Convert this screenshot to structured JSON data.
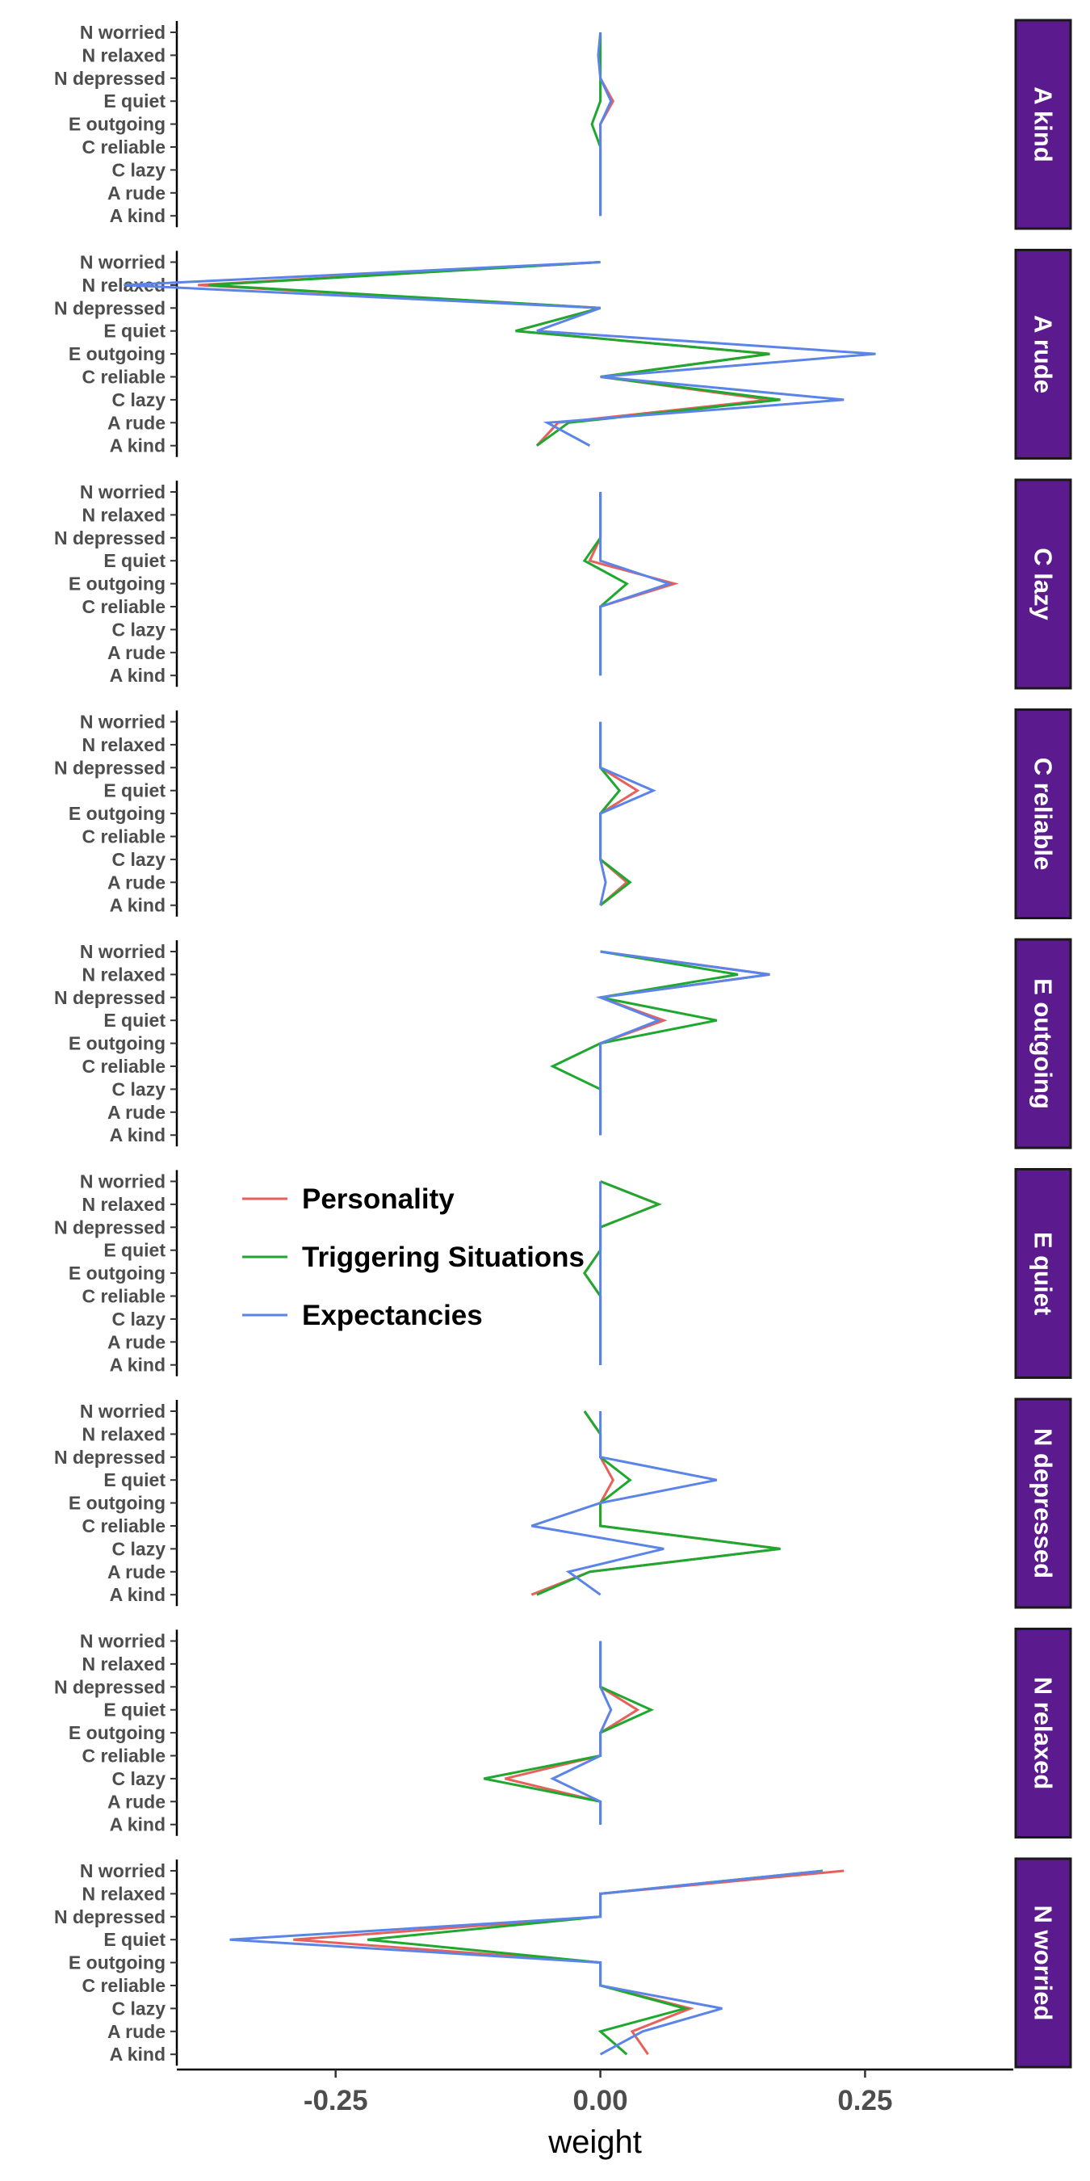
{
  "chart_data": {
    "type": "line",
    "xlabel": "weight",
    "ylabel": "",
    "xlim": [
      -0.4,
      0.39
    ],
    "x_ticks": [
      -0.25,
      0.0,
      0.25
    ],
    "x_tick_labels": [
      "-0.25",
      "0.00",
      "0.25"
    ],
    "y_categories": [
      "N worried",
      "N relaxed",
      "N depressed",
      "E quiet",
      "E outgoing",
      "C reliable",
      "C lazy",
      "A rude",
      "A kind"
    ],
    "facet_strip_color": "#5c1a8f",
    "legend": {
      "placement": "inside-left",
      "entries": [
        {
          "label": "Personality",
          "color": "#e8605a"
        },
        {
          "label": "Triggering Situations",
          "color": "#1fa82f"
        },
        {
          "label": "Expectancies",
          "color": "#5b84e8"
        }
      ]
    },
    "panels": [
      {
        "facet": "A kind",
        "series": [
          {
            "name": "Personality",
            "values": [
              0,
              0,
              0,
              0.012,
              0,
              0,
              0,
              0,
              0
            ]
          },
          {
            "name": "Triggering Situations",
            "values": [
              0,
              0,
              0,
              0,
              -0.008,
              0,
              0,
              0,
              0
            ]
          },
          {
            "name": "Expectancies",
            "values": [
              0,
              -0.002,
              0,
              0.01,
              0,
              0,
              0,
              0,
              0
            ]
          }
        ]
      },
      {
        "facet": "A rude",
        "series": [
          {
            "name": "Personality",
            "values": [
              0,
              -0.38,
              0,
              -0.08,
              0.16,
              0,
              0.16,
              -0.04,
              -0.06
            ]
          },
          {
            "name": "Triggering Situations",
            "values": [
              0,
              -0.37,
              0,
              -0.08,
              0.16,
              0,
              0.17,
              -0.03,
              -0.06
            ]
          },
          {
            "name": "Expectancies",
            "values": [
              0,
              -0.45,
              0,
              -0.06,
              0.26,
              0,
              0.23,
              -0.05,
              -0.01
            ]
          }
        ]
      },
      {
        "facet": "C lazy",
        "series": [
          {
            "name": "Personality",
            "values": [
              0,
              0,
              0,
              -0.01,
              0.07,
              0,
              0,
              0,
              0
            ]
          },
          {
            "name": "Triggering Situations",
            "values": [
              0,
              0,
              0,
              -0.015,
              0.025,
              0,
              0,
              0,
              0
            ]
          },
          {
            "name": "Expectancies",
            "values": [
              0,
              0,
              0,
              0,
              0.065,
              0,
              0,
              0,
              0
            ]
          }
        ]
      },
      {
        "facet": "C reliable",
        "series": [
          {
            "name": "Personality",
            "values": [
              0,
              0,
              0,
              0.035,
              0,
              0,
              0,
              0.025,
              0
            ]
          },
          {
            "name": "Triggering Situations",
            "values": [
              0,
              0,
              0,
              0.018,
              0,
              0,
              0,
              0.028,
              0
            ]
          },
          {
            "name": "Expectancies",
            "values": [
              0,
              0,
              0,
              0.05,
              0,
              0,
              0,
              0.005,
              0
            ]
          }
        ]
      },
      {
        "facet": "E outgoing",
        "series": [
          {
            "name": "Personality",
            "values": [
              0,
              0.16,
              0,
              0.06,
              0,
              0,
              0,
              0,
              0
            ]
          },
          {
            "name": "Triggering Situations",
            "values": [
              0,
              0.13,
              0,
              0.11,
              0,
              -0.045,
              0,
              0,
              0
            ]
          },
          {
            "name": "Expectancies",
            "values": [
              0,
              0.16,
              0,
              0.055,
              0,
              0,
              0,
              0,
              0
            ]
          }
        ]
      },
      {
        "facet": "E quiet",
        "series": [
          {
            "name": "Personality",
            "values": [
              0,
              0.055,
              0,
              0,
              -0.015,
              0,
              0,
              0,
              0
            ]
          },
          {
            "name": "Triggering Situations",
            "values": [
              0,
              0.055,
              0,
              0,
              -0.015,
              0,
              0,
              0,
              0
            ]
          },
          {
            "name": "Expectancies",
            "values": [
              0,
              0,
              0,
              0,
              0,
              0,
              0,
              0,
              0
            ]
          }
        ]
      },
      {
        "facet": "N depressed",
        "series": [
          {
            "name": "Personality",
            "values": [
              -0.015,
              0,
              0,
              0.012,
              0,
              0,
              0.17,
              -0.01,
              -0.065
            ]
          },
          {
            "name": "Triggering Situations",
            "values": [
              -0.015,
              0,
              0,
              0.028,
              0,
              0,
              0.17,
              -0.01,
              -0.06
            ]
          },
          {
            "name": "Expectancies",
            "values": [
              0,
              0,
              0,
              0.11,
              0,
              -0.065,
              0.06,
              -0.03,
              0
            ]
          }
        ]
      },
      {
        "facet": "N relaxed",
        "series": [
          {
            "name": "Personality",
            "values": [
              0,
              0,
              0,
              0.035,
              0,
              0,
              -0.09,
              0,
              0
            ]
          },
          {
            "name": "Triggering Situations",
            "values": [
              0,
              0,
              0,
              0.048,
              0,
              0,
              -0.11,
              0,
              0
            ]
          },
          {
            "name": "Expectancies",
            "values": [
              0,
              0,
              0,
              0.01,
              0,
              0,
              -0.045,
              0,
              0
            ]
          }
        ]
      },
      {
        "facet": "N worried",
        "series": [
          {
            "name": "Personality",
            "values": [
              0.23,
              0,
              0,
              -0.29,
              0,
              0,
              0.085,
              0.03,
              0.045
            ]
          },
          {
            "name": "Triggering Situations",
            "values": [
              0.21,
              0,
              0,
              -0.22,
              0,
              0,
              0.08,
              0,
              0.025
            ]
          },
          {
            "name": "Expectancies",
            "values": [
              0.21,
              0,
              0,
              -0.35,
              0,
              0,
              0.115,
              0.04,
              0
            ]
          }
        ]
      }
    ]
  }
}
